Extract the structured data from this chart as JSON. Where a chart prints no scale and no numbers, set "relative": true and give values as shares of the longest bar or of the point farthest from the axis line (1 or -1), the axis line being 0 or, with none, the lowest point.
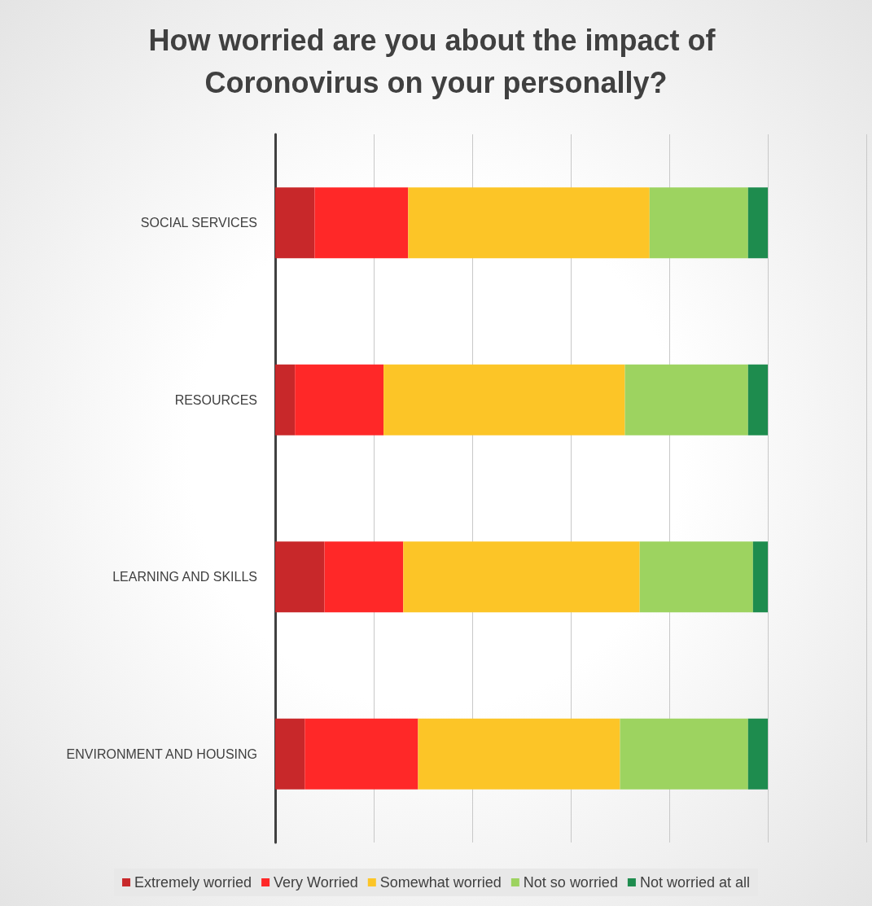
{
  "chart_data": {
    "type": "bar",
    "orientation": "horizontal",
    "stacked": true,
    "relative": true,
    "title": "How worried are you about the impact of Coronovirus on your personally?",
    "categories": [
      "SOCIAL SERVICES",
      "RESOURCES",
      "LEARNING AND SKILLS",
      "ENVIRONMENT AND HOUSING"
    ],
    "series": [
      {
        "name": "Extremely worried",
        "color": "#c8282a",
        "values": [
          0.08,
          0.04,
          0.1,
          0.06
        ]
      },
      {
        "name": "Very Worried",
        "color": "#ff2828",
        "values": [
          0.19,
          0.18,
          0.16,
          0.23
        ]
      },
      {
        "name": "Somewhat worried",
        "color": "#fcc527",
        "values": [
          0.49,
          0.49,
          0.48,
          0.41
        ]
      },
      {
        "name": "Not so worried",
        "color": "#9dd360",
        "values": [
          0.2,
          0.25,
          0.23,
          0.26
        ]
      },
      {
        "name": "Not worried at all",
        "color": "#1e8c4e",
        "values": [
          0.04,
          0.04,
          0.03,
          0.04
        ]
      }
    ],
    "grid": "x",
    "legend": "bottom"
  }
}
